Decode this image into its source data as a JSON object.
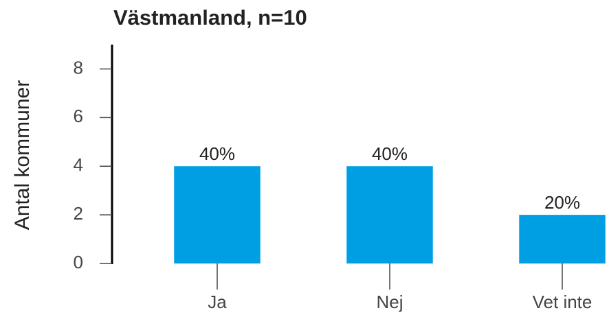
{
  "chart_data": {
    "type": "bar",
    "title": "Västmanland, n=10",
    "y_label": "Antal kommuner",
    "categories": [
      "Ja",
      "Nej",
      "Vet inte"
    ],
    "values": [
      4,
      4,
      2
    ],
    "value_labels": [
      "40%",
      "40%",
      "20%"
    ],
    "color": "#009fe3",
    "ylim": [
      0,
      9
    ],
    "yticks": [
      0,
      2,
      4,
      6,
      8
    ]
  }
}
